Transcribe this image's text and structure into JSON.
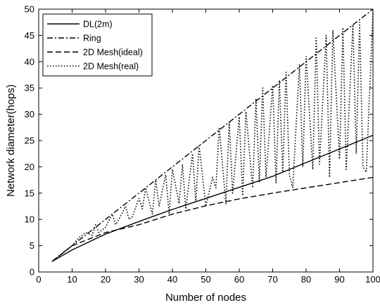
{
  "chart_data": {
    "type": "line",
    "xlabel": "Number of nodes",
    "ylabel": "Network diameter(hops)",
    "xlim": [
      0,
      100
    ],
    "ylim": [
      0,
      50
    ],
    "xticks": [
      0,
      10,
      20,
      30,
      40,
      50,
      60,
      70,
      80,
      90,
      100
    ],
    "yticks": [
      0,
      5,
      10,
      15,
      20,
      25,
      30,
      35,
      40,
      45,
      50
    ],
    "grid": false,
    "legend_position": "top-left",
    "series": [
      {
        "name": "DL(2m)",
        "style": "solid",
        "x": [
          4,
          10,
          20,
          30,
          40,
          50,
          60,
          70,
          80,
          90,
          100
        ],
        "y": [
          2,
          4.2,
          7.2,
          9.6,
          11.9,
          14.0,
          16.1,
          18.2,
          20.8,
          23.4,
          26.0
        ]
      },
      {
        "name": "Ring",
        "style": "dashdot",
        "x": [
          4,
          100
        ],
        "y": [
          2,
          50
        ]
      },
      {
        "name": "2D Mesh(ideal)",
        "style": "dashed",
        "x": [
          4,
          10,
          20,
          30,
          40,
          50,
          60,
          70,
          80,
          90,
          100
        ],
        "y": [
          2,
          5.0,
          7.5,
          9.0,
          11.0,
          12.6,
          13.9,
          15.0,
          16.0,
          17.0,
          18.0
        ]
      },
      {
        "name": "2D Mesh(real)",
        "style": "dotted",
        "x": [
          4,
          10,
          12,
          14,
          16,
          17,
          18,
          20,
          22,
          23,
          24,
          26,
          27,
          28,
          30,
          31,
          32,
          34,
          35,
          36,
          38,
          39,
          40,
          42,
          43,
          44,
          46,
          47,
          48,
          50,
          52,
          53,
          54,
          56,
          57,
          58,
          60,
          61,
          62,
          64,
          65,
          66,
          67,
          68,
          70,
          71,
          72,
          73,
          74,
          75,
          76,
          78,
          79,
          80,
          82,
          83,
          84,
          86,
          87,
          88,
          90,
          91,
          92,
          94,
          95,
          96,
          97,
          98,
          100
        ],
        "y": [
          2,
          5,
          6.5,
          7.5,
          7,
          9,
          7.5,
          8.5,
          11,
          9,
          10,
          12.5,
          10,
          10.5,
          14,
          12,
          16,
          11,
          17.5,
          12.5,
          18.5,
          11,
          19.5,
          13,
          20.5,
          12,
          22.5,
          13.5,
          24,
          12.5,
          18,
          16,
          27.5,
          13,
          28.5,
          15,
          29.5,
          14.5,
          30.5,
          16,
          33,
          17,
          35,
          18,
          35.5,
          17,
          36.5,
          19,
          38,
          18.5,
          16,
          39.5,
          20,
          41,
          19.5,
          44.5,
          20.5,
          45,
          18,
          46,
          21.5,
          46.5,
          19.5,
          47,
          22.5,
          47.5,
          20,
          19,
          49.5
        ]
      }
    ]
  }
}
